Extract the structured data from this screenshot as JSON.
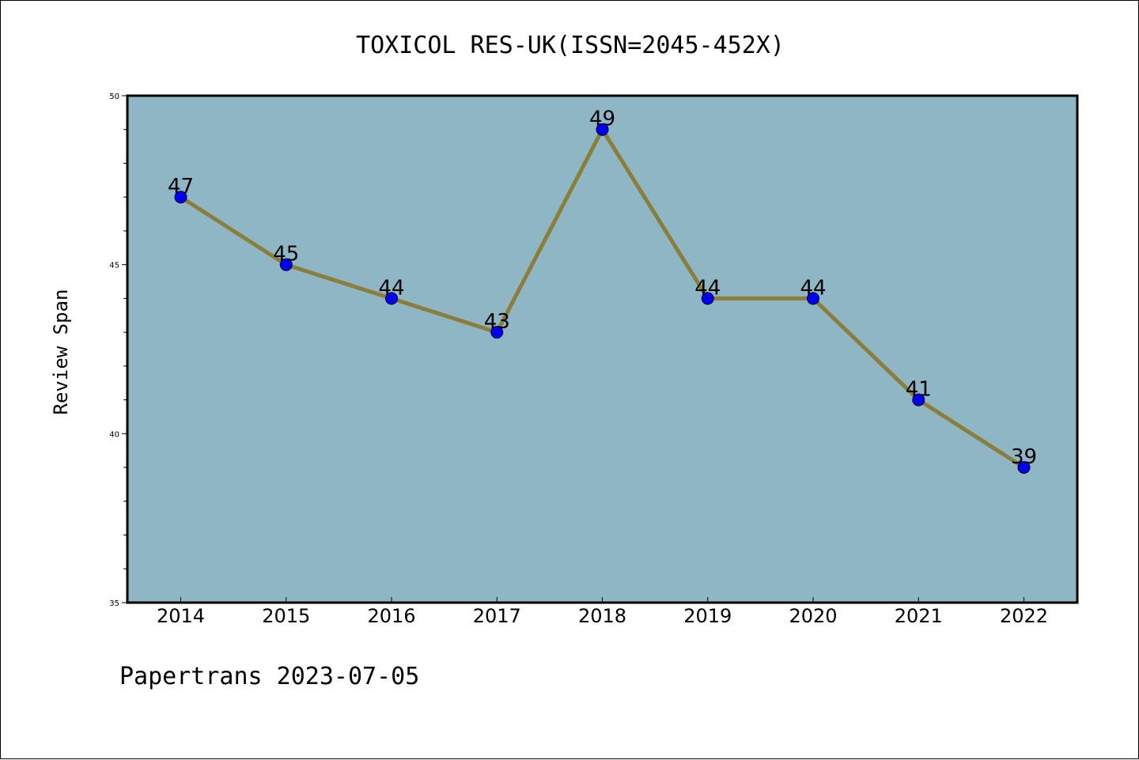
{
  "chart_data": {
    "type": "line",
    "title": "TOXICOL RES-UK(ISSN=2045-452X)",
    "xlabel": "",
    "ylabel": "Review Span",
    "categories": [
      "2014",
      "2015",
      "2016",
      "2017",
      "2018",
      "2019",
      "2020",
      "2021",
      "2022"
    ],
    "series": [
      {
        "values": [
          47,
          45,
          44,
          43,
          49,
          44,
          44,
          41,
          39
        ]
      }
    ],
    "data_labels": [
      "47",
      "45",
      "44",
      "43",
      "49",
      "44",
      "44",
      "41",
      "39"
    ],
    "ylim": [
      35,
      50
    ],
    "yticks": [
      "35",
      "40",
      "45",
      "50"
    ],
    "grid": false,
    "legend": "none",
    "colors": {
      "plot_background": "#8fb6c5",
      "line": "#8b7d3a",
      "marker": "#0000ee"
    }
  },
  "footer": {
    "text": "Papertrans 2023-07-05"
  }
}
